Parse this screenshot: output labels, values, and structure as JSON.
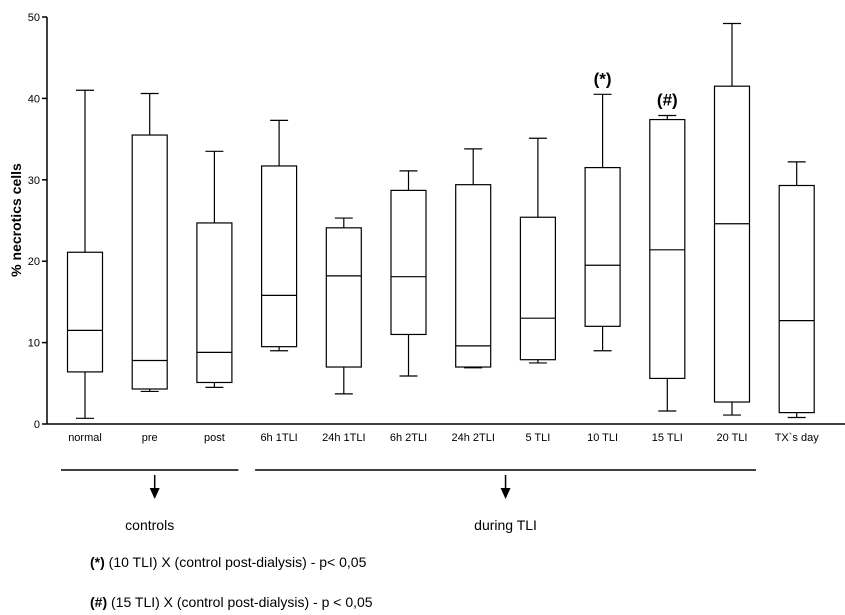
{
  "chart_data": {
    "type": "boxplot",
    "ylabel": "% necrotics cells",
    "ylim": [
      0,
      50
    ],
    "yticks": [
      0,
      10,
      20,
      30,
      40,
      50
    ],
    "categories": [
      "normal",
      "pre",
      "post",
      "6h 1TLI",
      "24h 1TLI",
      "6h 2TLI",
      "24h 2TLI",
      "5 TLI",
      "10 TLI",
      "15 TLI",
      "20 TLI",
      "TX`s day"
    ],
    "boxes": [
      {
        "min": 0.7,
        "q1": 6.4,
        "median": 11.5,
        "q3": 21.1,
        "max": 41.0
      },
      {
        "min": 4.0,
        "q1": 4.3,
        "median": 7.8,
        "q3": 35.5,
        "max": 40.6
      },
      {
        "min": 4.5,
        "q1": 5.1,
        "median": 8.8,
        "q3": 24.7,
        "max": 33.5
      },
      {
        "min": 9.0,
        "q1": 9.5,
        "median": 15.8,
        "q3": 31.7,
        "max": 37.3
      },
      {
        "min": 3.7,
        "q1": 7.0,
        "median": 18.2,
        "q3": 24.1,
        "max": 25.3
      },
      {
        "min": 5.9,
        "q1": 11.0,
        "median": 18.1,
        "q3": 28.7,
        "max": 31.1
      },
      {
        "min": 6.9,
        "q1": 7.0,
        "median": 9.6,
        "q3": 29.4,
        "max": 33.8
      },
      {
        "min": 7.5,
        "q1": 7.9,
        "median": 13.0,
        "q3": 25.4,
        "max": 35.1
      },
      {
        "min": 9.0,
        "q1": 12.0,
        "median": 19.5,
        "q3": 31.5,
        "max": 40.5
      },
      {
        "min": 1.6,
        "q1": 5.6,
        "median": 21.4,
        "q3": 37.4,
        "max": 37.9
      },
      {
        "min": 1.1,
        "q1": 2.7,
        "median": 24.6,
        "q3": 41.5,
        "max": 49.2
      },
      {
        "min": 0.8,
        "q1": 1.4,
        "median": 12.7,
        "q3": 29.3,
        "max": 32.2
      }
    ],
    "annotations": [
      {
        "text": "(*)",
        "category": "10 TLI"
      },
      {
        "text": "(#)",
        "category": "15 TLI"
      }
    ],
    "groups": [
      {
        "label": "controls",
        "categories": [
          "normal",
          "pre",
          "post"
        ]
      },
      {
        "label": "during TLI",
        "categories": [
          "6h 1TLI",
          "24h 1TLI",
          "6h 2TLI",
          "24h 2TLI",
          "5 TLI",
          "10 TLI",
          "15 TLI",
          "20 TLI"
        ]
      }
    ]
  },
  "notes": [
    {
      "symbol": "(*)",
      "text": " (10 TLI)  X (control post-dialysis) - p< 0,05"
    },
    {
      "symbol": "(#)",
      "text": " (15 TLI) X  (control post-dialysis) - p < 0,05"
    }
  ],
  "colors": {
    "line": "#000000",
    "background": "#ffffff"
  }
}
